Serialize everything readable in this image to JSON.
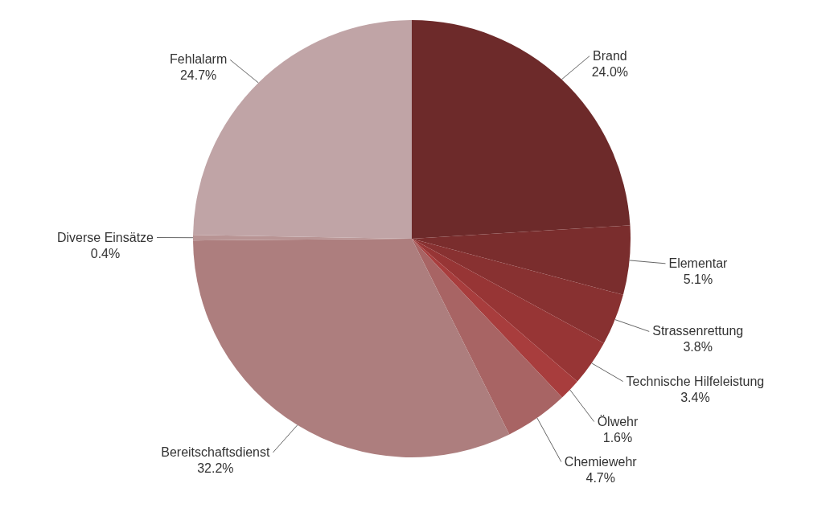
{
  "chart_data": {
    "type": "pie",
    "categories": [
      "Brand",
      "Elementar",
      "Strassenrettung",
      "Technische Hilfeleistung",
      "Ölwehr",
      "Chemiewehr",
      "Bereitschaftsdienst",
      "Diverse Einsätze",
      "Fehlalarm"
    ],
    "values": [
      24.0,
      5.1,
      3.8,
      3.4,
      1.6,
      4.7,
      32.2,
      0.4,
      24.7
    ],
    "value_labels": [
      "24.0%",
      "5.1%",
      "3.8%",
      "3.4%",
      "1.6%",
      "4.7%",
      "32.2%",
      "0.4%",
      "24.7%"
    ],
    "colors": [
      "#6d2a2a",
      "#7a2d2d",
      "#883131",
      "#973535",
      "#a83d3d",
      "#a86464",
      "#ad7e7e",
      "#b89494",
      "#c0a4a6"
    ],
    "legend": false
  }
}
